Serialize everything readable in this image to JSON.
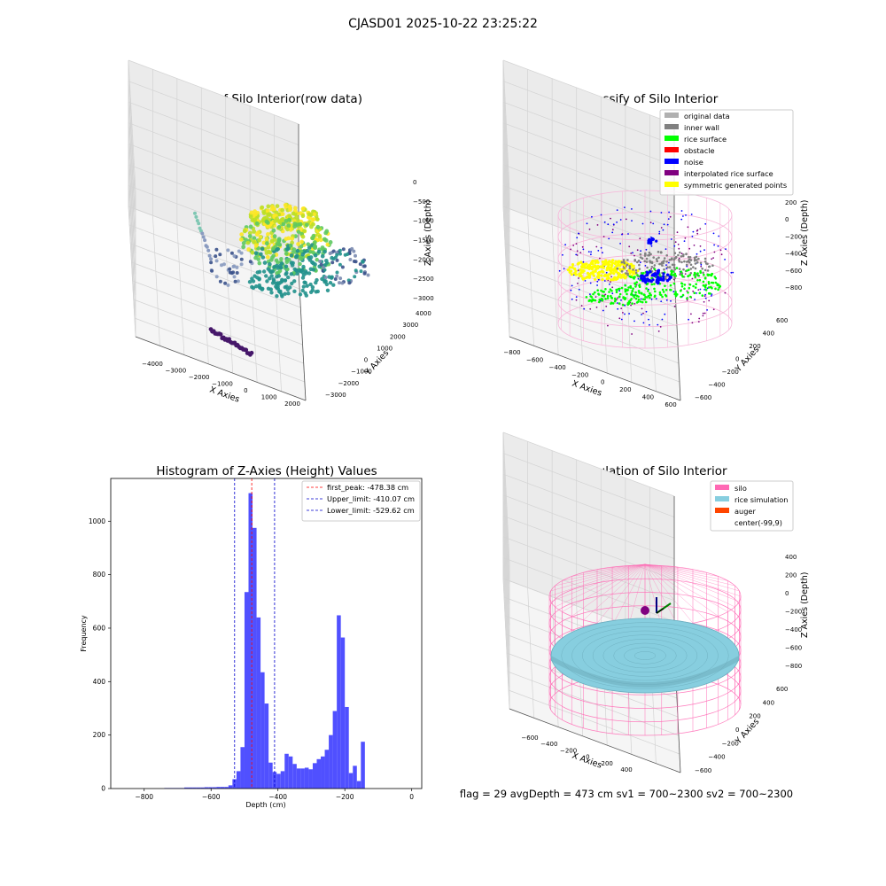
{
  "suptitle": "CJASD01 2025-10-22 23:25:22",
  "status_line": "flag = 29  avgDepth = 473 cm  sv1 = 700~2300  sv2 = 700~2300",
  "colors": {
    "hist_bar": "#5050ff",
    "peak_line": "#ff0000",
    "limit_line": "#0000cc",
    "silo": "#ff69b4",
    "rice_sim": "#87cedf",
    "auger": "#ff4500",
    "inner_wall": "#808080",
    "rice_surface": "#00ff00",
    "noise": "#0000ff",
    "interp": "#800080",
    "symmetric": "#ffff00",
    "original": "#b0b0b0"
  },
  "chart_data": [
    {
      "type": "scatter",
      "projection": "3d",
      "title": "3D Plot of Silo Interior(row data)",
      "xlabel": "X Axies",
      "ylabel": "Y Axies",
      "zlabel": "Z Axies (Depth)",
      "xticks": [
        "−4000",
        "−3000",
        "−2000",
        "−1000",
        "0",
        "1000",
        "2000"
      ],
      "yticks": [
        "−3000",
        "−2000",
        "−1000",
        "0",
        "1000",
        "2000",
        "3000",
        "4000"
      ],
      "zticks": [
        "0",
        "−500",
        "−1000",
        "−1500",
        "−2000",
        "−2500",
        "−3000"
      ],
      "xlim": [
        -4500,
        2000
      ],
      "ylim": [
        -3500,
        4000
      ],
      "zlim": [
        -3200,
        0
      ],
      "colormap": "viridis"
    },
    {
      "type": "scatter",
      "projection": "3d",
      "title": "3D classify of Silo Interior",
      "xlabel": "X Axies",
      "ylabel": "Y Axies",
      "zlabel": "Z Axies (Depth)",
      "xticks": [
        "−800",
        "−600",
        "−400",
        "−200",
        "0",
        "200",
        "400",
        "600"
      ],
      "yticks": [
        "−600",
        "−400",
        "−200",
        "0",
        "200",
        "400",
        "600"
      ],
      "zticks": [
        "200",
        "0",
        "−200",
        "−400",
        "−600",
        "−800"
      ],
      "legend_position": "upper-right",
      "legend": [
        {
          "label": "original data",
          "color": "#b0b0b0"
        },
        {
          "label": "inner wall",
          "color": "#808080"
        },
        {
          "label": "rice surface",
          "color": "#00ff00"
        },
        {
          "label": "obstacle",
          "color": "#ff0000"
        },
        {
          "label": "noise",
          "color": "#0000ff"
        },
        {
          "label": "interpolated rice surface",
          "color": "#800080"
        },
        {
          "label": "symmetric generated points",
          "color": "#ffff00"
        }
      ]
    },
    {
      "type": "bar",
      "title": "Histogram of Z-Axies (Height) Values",
      "xlabel": "Depth (cm)",
      "ylabel": "Frequency",
      "xlim": [
        -900,
        30
      ],
      "ylim": [
        0,
        1160
      ],
      "xticks": [
        -800,
        -600,
        -400,
        -200,
        0
      ],
      "yticks": [
        0,
        200,
        400,
        600,
        800,
        1000
      ],
      "bin_edges_start": -740,
      "bin_width": 12,
      "values": [
        2,
        2,
        2,
        2,
        2,
        4,
        4,
        4,
        4,
        4,
        5,
        5,
        5,
        6,
        6,
        6,
        12,
        35,
        65,
        155,
        735,
        1105,
        975,
        640,
        435,
        318,
        97,
        62,
        55,
        65,
        130,
        120,
        92,
        75,
        75,
        78,
        72,
        95,
        110,
        120,
        145,
        200,
        290,
        648,
        565,
        305,
        58,
        85,
        28,
        175
      ],
      "vlines": [
        {
          "label": "first_peak: -478.38 cm",
          "x": -478.38,
          "color": "#ff0000"
        },
        {
          "label": "Upper_limit: -410.07 cm",
          "x": -410.07,
          "color": "#0000cc"
        },
        {
          "label": "Lower_limit: -529.62 cm",
          "x": -529.62,
          "color": "#0000cc"
        }
      ],
      "legend_position": "upper-right"
    },
    {
      "type": "surface",
      "projection": "3d",
      "title": "3D simulation of Silo Interior",
      "xlabel": "X Axies",
      "ylabel": "Y Axies",
      "zlabel": "Z Axies (Depth)",
      "xticks": [
        "−600",
        "−400",
        "−200",
        "0",
        "200",
        "400"
      ],
      "yticks": [
        "−600",
        "−400",
        "−200",
        "0",
        "200",
        "400",
        "600"
      ],
      "zticks": [
        "400",
        "200",
        "0",
        "−200",
        "−400",
        "−600",
        "−800"
      ],
      "legend_position": "upper-right",
      "legend": [
        {
          "label": "silo",
          "color": "#ff69b4"
        },
        {
          "label": "rice simulation",
          "color": "#87cedf"
        },
        {
          "label": "auger",
          "color": "#ff4500"
        },
        {
          "label": "center(-99,9)",
          "color": ""
        }
      ]
    }
  ]
}
